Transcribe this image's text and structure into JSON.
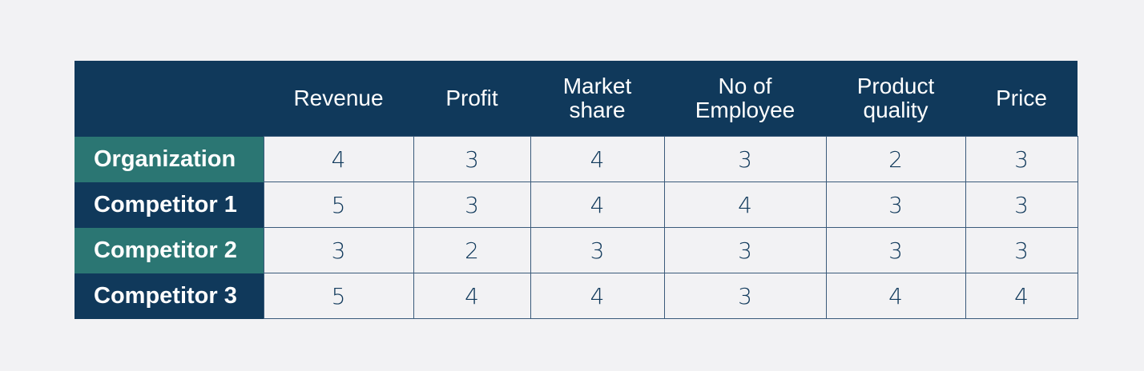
{
  "colors": {
    "header": "#10395b",
    "teal_row": "#2b7673",
    "background": "#f2f2f4"
  },
  "table": {
    "columns": [
      "Revenue",
      "Profit",
      "Market share",
      "No of Employee",
      "Product quality",
      "Price"
    ],
    "rows": [
      {
        "label": "Organization",
        "values": [
          "4",
          "3",
          "4",
          "3",
          "2",
          "3"
        ]
      },
      {
        "label": "Competitor 1",
        "values": [
          "5",
          "3",
          "4",
          "4",
          "3",
          "3"
        ]
      },
      {
        "label": "Competitor 2",
        "values": [
          "3",
          "2",
          "3",
          "3",
          "3",
          "3"
        ]
      },
      {
        "label": "Competitor 3",
        "values": [
          "5",
          "4",
          "4",
          "3",
          "4",
          "4"
        ]
      }
    ]
  }
}
